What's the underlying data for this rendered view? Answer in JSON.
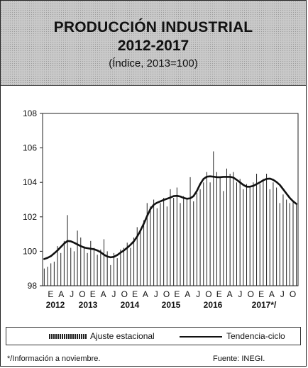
{
  "header": {
    "title_line1": "PRODUCCIÓN INDUSTRIAL",
    "title_line2": "2012-2017",
    "subtitle": "(Índice, 2013=100)"
  },
  "footer": {
    "note": "*/Información a noviembre.",
    "source": "Fuente: INEGI."
  },
  "chart_data": {
    "type": "bar",
    "title": "PRODUCCIÓN INDUSTRIAL 2012-2017",
    "subtitle": "(Índice, 2013=100)",
    "ylim": [
      98,
      108
    ],
    "yticks": [
      98,
      100,
      102,
      104,
      106,
      108
    ],
    "month_tick_labels": [
      "E",
      "A",
      "J",
      "O",
      "E",
      "A",
      "J",
      "O",
      "E",
      "A",
      "J",
      "O",
      "E",
      "A",
      "J",
      "O",
      "E",
      "A",
      "J",
      "O",
      "E",
      "A",
      "J",
      "O"
    ],
    "year_labels": [
      "2012",
      "2013",
      "2014",
      "2015",
      "2016",
      "2017*/"
    ],
    "legend_position": "bottom",
    "series": [
      {
        "name": "Ajuste estacional",
        "type": "bar",
        "color": "#222222",
        "values": [
          99.0,
          99.1,
          99.3,
          99.4,
          100.3,
          99.9,
          100.6,
          102.1,
          100.2,
          100.0,
          101.2,
          100.8,
          100.3,
          99.9,
          100.6,
          100.2,
          99.8,
          100.1,
          100.7,
          100.0,
          99.2,
          99.9,
          99.6,
          100.1,
          100.2,
          100.5,
          100.2,
          100.8,
          101.4,
          101.2,
          101.8,
          102.8,
          102.6,
          103.0,
          102.5,
          102.8,
          103.1,
          102.6,
          103.6,
          103.1,
          103.7,
          102.8,
          103.2,
          103.0,
          104.3,
          102.9,
          103.4,
          103.6,
          104.0,
          104.6,
          104.0,
          105.8,
          104.6,
          104.3,
          103.5,
          104.8,
          104.5,
          104.6,
          104.0,
          104.2,
          103.6,
          103.9,
          103.8,
          104.0,
          104.5,
          103.9,
          104.2,
          104.5,
          103.6,
          104.0,
          103.7,
          102.8,
          103.3,
          103.0,
          102.8,
          102.9,
          102.7
        ]
      },
      {
        "name": "Tendencia-ciclo",
        "type": "line",
        "color": "#111111",
        "values": [
          99.55,
          99.62,
          99.72,
          99.88,
          100.05,
          100.25,
          100.45,
          100.6,
          100.58,
          100.5,
          100.4,
          100.3,
          100.22,
          100.18,
          100.15,
          100.12,
          100.05,
          99.95,
          99.8,
          99.7,
          99.65,
          99.68,
          99.78,
          99.92,
          100.05,
          100.2,
          100.38,
          100.58,
          100.85,
          101.2,
          101.6,
          102.05,
          102.45,
          102.7,
          102.82,
          102.9,
          102.98,
          103.05,
          103.12,
          103.2,
          103.22,
          103.18,
          103.1,
          103.05,
          103.08,
          103.2,
          103.5,
          103.9,
          104.2,
          104.33,
          104.35,
          104.33,
          104.3,
          104.3,
          104.32,
          104.32,
          104.32,
          104.28,
          104.15,
          104.0,
          103.85,
          103.75,
          103.75,
          103.8,
          103.9,
          104.0,
          104.12,
          104.2,
          104.22,
          104.15,
          104.02,
          103.85,
          103.6,
          103.35,
          103.1,
          102.9,
          102.75
        ]
      }
    ]
  },
  "legend": {
    "bars_label": "Ajuste estacional",
    "line_label": "Tendencia-ciclo"
  }
}
